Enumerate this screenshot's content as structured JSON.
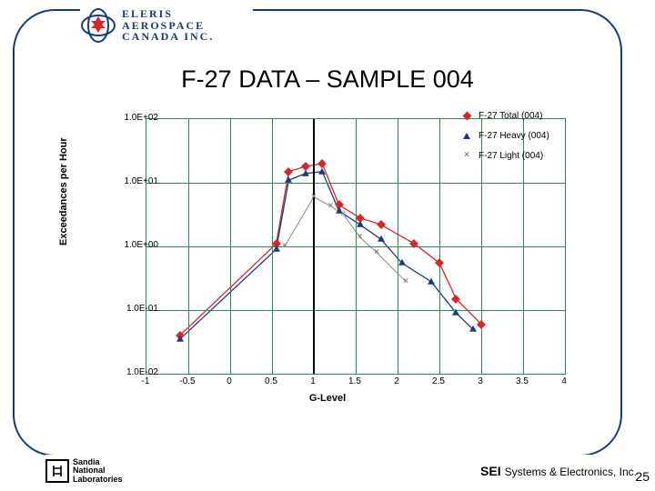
{
  "logo": {
    "line1": "ELERIS",
    "line2": "AEROSPACE",
    "line3": "CANADA INC.",
    "outer_color": "#1a3a7a",
    "leaf_color": "#d62728"
  },
  "title": {
    "text": "F-27 DATA – SAMPLE 004",
    "fontsize": 27
  },
  "chart": {
    "type": "scatter-line-logy",
    "xlabel": "G-Level",
    "ylabel": "Exceedances per Hour",
    "xlim": [
      -1,
      4
    ],
    "ylim_exp": [
      -2,
      2
    ],
    "xticks": [
      -1,
      -0.5,
      0,
      0.5,
      1,
      1.5,
      2,
      2.5,
      3,
      3.5,
      4
    ],
    "ytick_labels": [
      "1.0E+02",
      "1.0E+01",
      "1.0E+00",
      "1.0E-01",
      "1.0E-02"
    ],
    "ytick_exps": [
      2,
      1,
      0,
      -1,
      -2
    ],
    "grid_color": "#2e8b57",
    "background": "#ffffff",
    "label_fontsize": 11,
    "tick_fontsize": 10,
    "series": [
      {
        "name": "F-27 Total (004)",
        "marker": "diamond",
        "color": "#d62728",
        "line_width": 1.3,
        "x": [
          -0.6,
          0.55,
          0.7,
          0.9,
          1.1,
          1.3,
          1.55,
          1.8,
          2.2,
          2.5,
          2.7,
          3.0
        ],
        "y": [
          0.04,
          1.1,
          15,
          18,
          20,
          4.5,
          2.8,
          2.2,
          1.1,
          0.55,
          0.15,
          0.06
        ]
      },
      {
        "name": "F-27 Heavy (004)",
        "marker": "triangle",
        "color": "#1a3a7a",
        "line_width": 1.3,
        "x": [
          -0.6,
          0.55,
          0.7,
          0.9,
          1.1,
          1.3,
          1.55,
          1.8,
          2.05,
          2.4,
          2.7,
          2.9
        ],
        "y": [
          0.035,
          0.9,
          11,
          14,
          15,
          3.6,
          2.2,
          1.3,
          0.55,
          0.28,
          0.09,
          0.05
        ]
      },
      {
        "name": "F-27 Light (004)",
        "marker": "x",
        "color": "#8a8a8a",
        "line_width": 1.0,
        "x": [
          0.65,
          1.0,
          1.2,
          1.35,
          1.55,
          1.75,
          2.1
        ],
        "y": [
          1.0,
          6.0,
          4.3,
          3.2,
          1.4,
          0.8,
          0.28
        ]
      }
    ],
    "center_line_x": 1.0
  },
  "legend": {
    "items": [
      {
        "label": "F-27 Total (004)",
        "marker": "diamond",
        "color": "#d62728"
      },
      {
        "label": "F-27 Heavy (004)",
        "marker": "triangle",
        "color": "#1a3a7a"
      },
      {
        "label": "F-27 Light (004)",
        "marker": "x",
        "color": "#8a8a8a"
      }
    ]
  },
  "footer": {
    "sandia_lines": [
      "Sandia",
      "National",
      "Laboratories"
    ],
    "sei_bold": "SEI",
    "sei_rest": "Systems & Electronics, Inc.",
    "rule_color": "#1a3a7a"
  },
  "page_number": "25"
}
